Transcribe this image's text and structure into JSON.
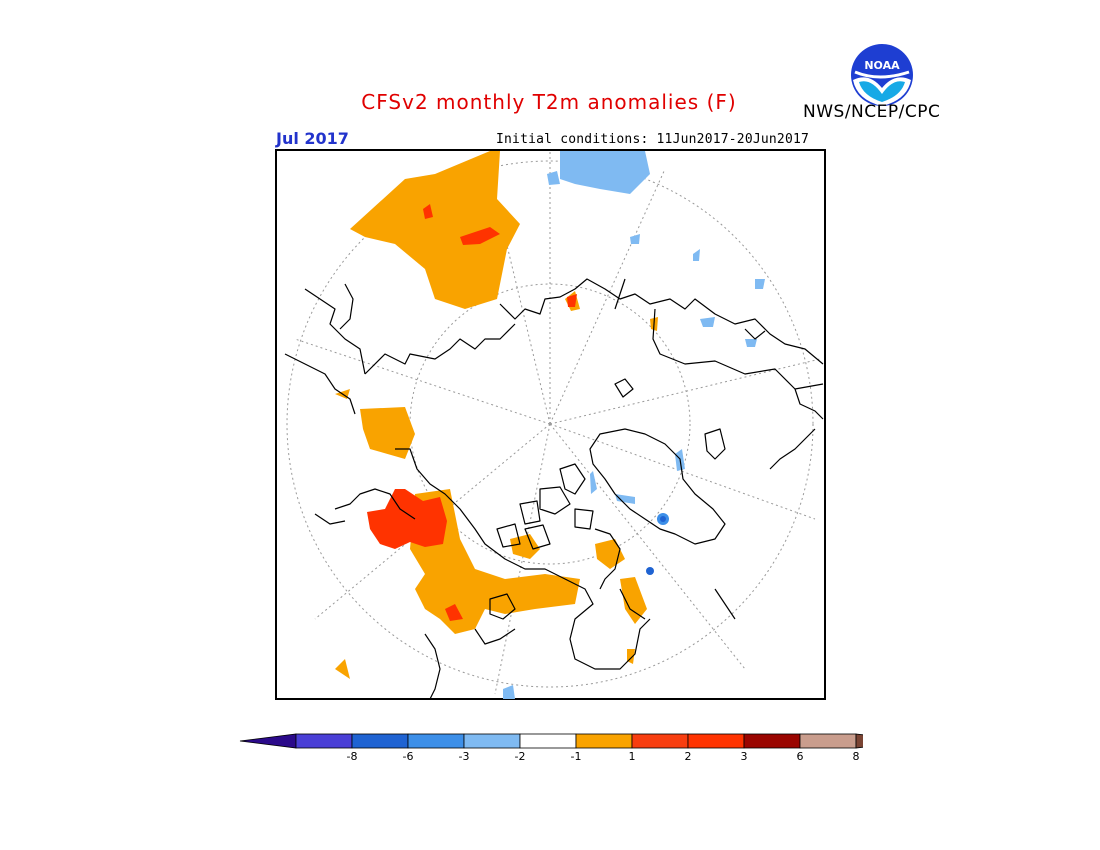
{
  "title": "CFSv2 monthly T2m anomalies (F)",
  "agency": "NWS/NCEP/CPC",
  "logo_text": "NOAA",
  "valid_month": "Jul 2017",
  "initial_conditions": "Initial conditions: 11Jun2017-20Jun2017",
  "colors": {
    "title": "#e00000",
    "month": "#2233cc",
    "neg8": "#2b0a8a",
    "neg6": "#4a3fd6",
    "neg3": "#1f63d2",
    "neg2": "#3d8fe8",
    "neg1": "#7fbaf2",
    "neutral": "#ffffff",
    "pos1": "#f9a300",
    "pos2": "#f83e10",
    "pos3": "#ff3300",
    "pos6": "#9a0500",
    "pos8": "#c99d8d",
    "pos_ext": "#7a4433"
  },
  "colorbar": {
    "tick_labels": [
      "-8",
      "-6",
      "-3",
      "-2",
      "-1",
      "1",
      "2",
      "3",
      "6",
      "8"
    ]
  }
}
